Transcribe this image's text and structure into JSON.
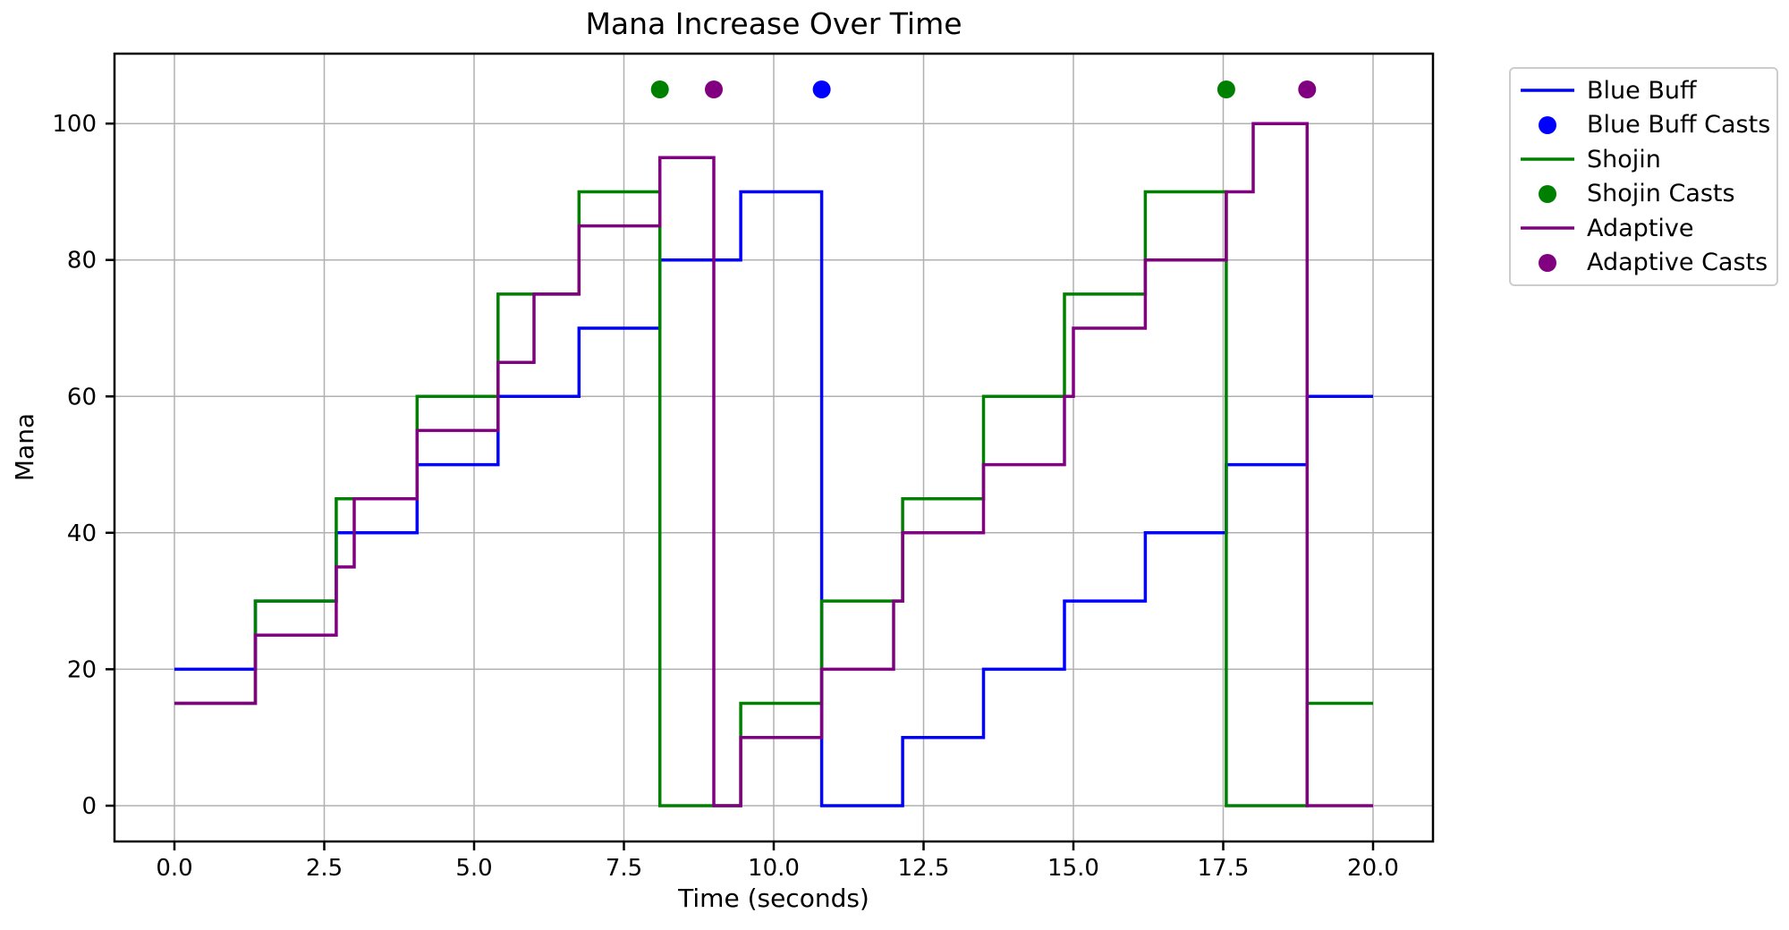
{
  "chart_data": {
    "type": "line",
    "step_mode": "post",
    "title": "Mana Increase Over Time",
    "xlabel": "Time (seconds)",
    "ylabel": "Mana",
    "xlim": [
      -1,
      21
    ],
    "ylim": [
      -5.25,
      110.25
    ],
    "x_range": [
      0,
      20
    ],
    "grid": true,
    "legend_position": "outside upper right",
    "cast_marker_mana": 105,
    "colors": {
      "blue_buff": "#0000ff",
      "shojin": "#008000",
      "adaptive": "#800080",
      "grid": "#b0b0b0",
      "spine": "#000000",
      "text": "#000000",
      "background": "#ffffff"
    },
    "xticks": {
      "values": [
        0,
        2.5,
        5,
        7.5,
        10,
        12.5,
        15,
        17.5,
        20
      ],
      "labels": [
        "0.0",
        "2.5",
        "5.0",
        "7.5",
        "10.0",
        "12.5",
        "15.0",
        "17.5",
        "20.0"
      ]
    },
    "yticks": {
      "values": [
        0,
        20,
        40,
        60,
        80,
        100
      ],
      "labels": [
        "0",
        "20",
        "40",
        "60",
        "80",
        "100"
      ]
    },
    "series": [
      {
        "name": "Blue Buff",
        "kind": "step",
        "color": "#0000ff",
        "points": [
          [
            0,
            20
          ],
          [
            1.35,
            30
          ],
          [
            2.7,
            40
          ],
          [
            4.05,
            50
          ],
          [
            5.4,
            60
          ],
          [
            6.75,
            70
          ],
          [
            8.1,
            80
          ],
          [
            9.45,
            90
          ],
          [
            10.8,
            0
          ],
          [
            12.15,
            10
          ],
          [
            13.5,
            20
          ],
          [
            14.85,
            30
          ],
          [
            16.2,
            40
          ],
          [
            17.55,
            50
          ],
          [
            18.9,
            60
          ]
        ]
      },
      {
        "name": "Blue Buff Casts",
        "kind": "scatter",
        "color": "#0000ff",
        "points": [
          [
            10.8,
            105
          ]
        ]
      },
      {
        "name": "Shojin",
        "kind": "step",
        "color": "#008000",
        "points": [
          [
            0,
            15
          ],
          [
            1.35,
            30
          ],
          [
            2.7,
            45
          ],
          [
            4.05,
            60
          ],
          [
            5.4,
            75
          ],
          [
            6.75,
            90
          ],
          [
            8.1,
            0
          ],
          [
            9.45,
            15
          ],
          [
            10.8,
            30
          ],
          [
            12.15,
            45
          ],
          [
            13.5,
            60
          ],
          [
            14.85,
            75
          ],
          [
            16.2,
            90
          ],
          [
            17.55,
            0
          ],
          [
            18.9,
            15
          ]
        ]
      },
      {
        "name": "Shojin Casts",
        "kind": "scatter",
        "color": "#008000",
        "points": [
          [
            8.1,
            105
          ],
          [
            17.55,
            105
          ]
        ]
      },
      {
        "name": "Adaptive",
        "kind": "step",
        "color": "#800080",
        "points": [
          [
            0,
            15
          ],
          [
            1.35,
            25
          ],
          [
            2.7,
            35
          ],
          [
            3.0,
            45
          ],
          [
            4.05,
            55
          ],
          [
            5.4,
            65
          ],
          [
            6.0,
            75
          ],
          [
            6.75,
            85
          ],
          [
            8.1,
            95
          ],
          [
            9.0,
            0
          ],
          [
            9.45,
            10
          ],
          [
            10.8,
            20
          ],
          [
            12.0,
            30
          ],
          [
            12.15,
            40
          ],
          [
            13.5,
            50
          ],
          [
            14.85,
            60
          ],
          [
            15.0,
            70
          ],
          [
            16.2,
            80
          ],
          [
            17.55,
            90
          ],
          [
            18.0,
            100
          ],
          [
            18.9,
            0
          ]
        ]
      },
      {
        "name": "Adaptive Casts",
        "kind": "scatter",
        "color": "#800080",
        "points": [
          [
            9.0,
            105
          ],
          [
            18.9,
            105
          ]
        ]
      }
    ]
  }
}
